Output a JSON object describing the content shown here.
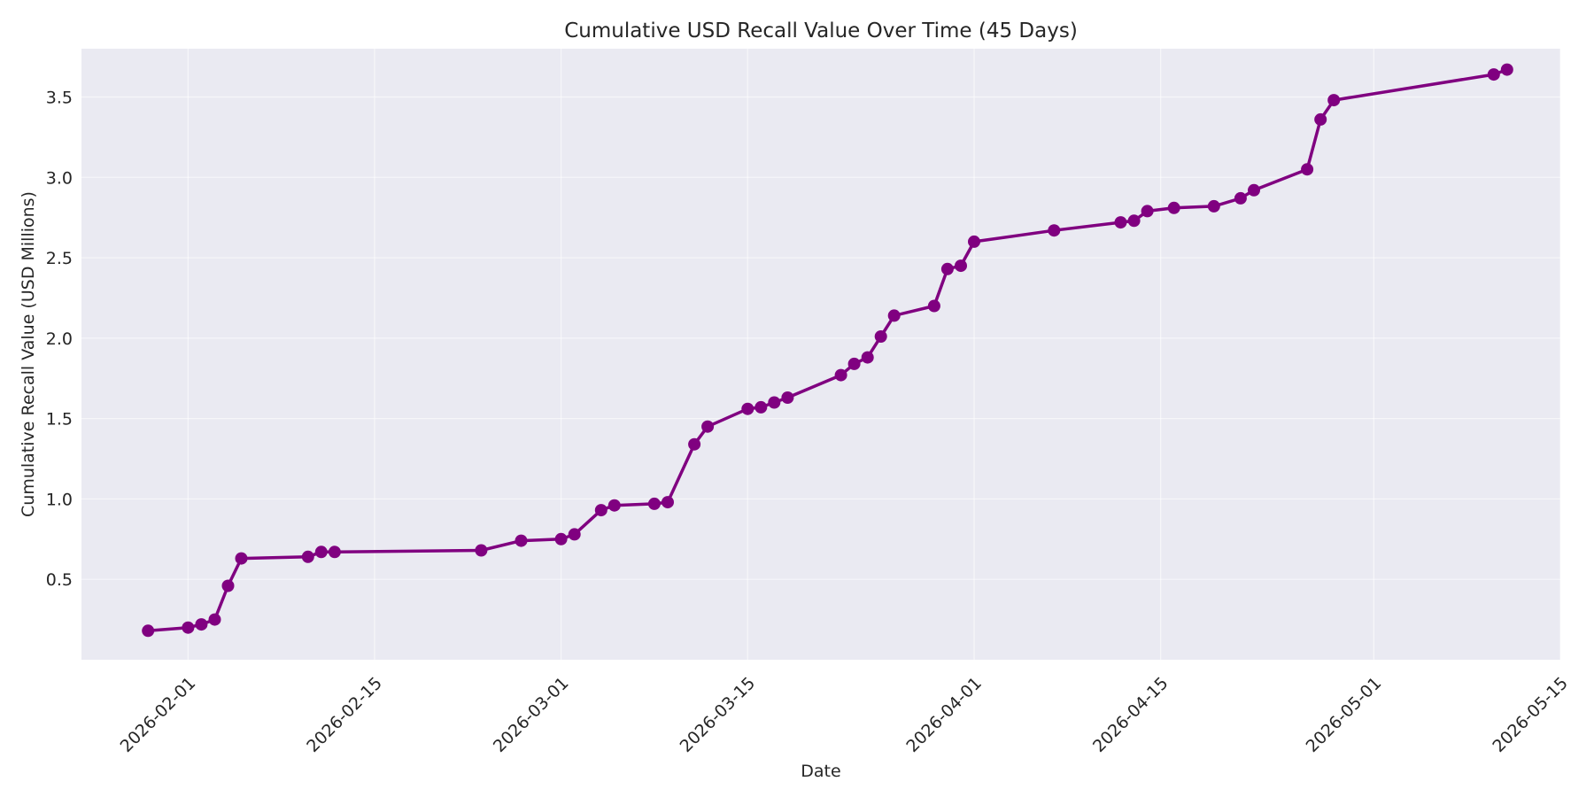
{
  "chart_data": {
    "type": "line",
    "title": "Cumulative USD Recall Value Over Time (45 Days)",
    "xlabel": "Date",
    "ylabel": "Cumulative Recall Value (USD Millions)",
    "xlim": [
      "2026-01-24",
      "2026-05-15"
    ],
    "ylim": [
      0.0,
      3.8
    ],
    "x_ticks": [
      "2026-02-01",
      "2026-02-15",
      "2026-03-01",
      "2026-03-15",
      "2026-04-01",
      "2026-04-15",
      "2026-05-01",
      "2026-05-15"
    ],
    "y_ticks": [
      "0.5",
      "1.0",
      "1.5",
      "2.0",
      "2.5",
      "3.0",
      "3.5"
    ],
    "grid": true,
    "colors": {
      "line": "#800080",
      "plot_background": "#eaeaf2",
      "grid": "#ffffff"
    },
    "series": [
      {
        "x": [
          "2026-01-29",
          "2026-02-01",
          "2026-02-02",
          "2026-02-03",
          "2026-02-04",
          "2026-02-05",
          "2026-02-10",
          "2026-02-11",
          "2026-02-12",
          "2026-02-23",
          "2026-02-26",
          "2026-03-01",
          "2026-03-02",
          "2026-03-04",
          "2026-03-05",
          "2026-03-08",
          "2026-03-09",
          "2026-03-11",
          "2026-03-12",
          "2026-03-15",
          "2026-03-16",
          "2026-03-17",
          "2026-03-18",
          "2026-03-22",
          "2026-03-23",
          "2026-03-24",
          "2026-03-25",
          "2026-03-26",
          "2026-03-29",
          "2026-03-30",
          "2026-03-31",
          "2026-04-01",
          "2026-04-07",
          "2026-04-12",
          "2026-04-13",
          "2026-04-14",
          "2026-04-16",
          "2026-04-19",
          "2026-04-21",
          "2026-04-22",
          "2026-04-26",
          "2026-04-27",
          "2026-04-28",
          "2026-05-10",
          "2026-05-11"
        ],
        "y": [
          0.18,
          0.2,
          0.22,
          0.25,
          0.46,
          0.63,
          0.64,
          0.67,
          0.67,
          0.68,
          0.74,
          0.75,
          0.78,
          0.93,
          0.96,
          0.97,
          0.98,
          1.34,
          1.45,
          1.56,
          1.57,
          1.6,
          1.63,
          1.77,
          1.84,
          1.88,
          2.01,
          2.14,
          2.2,
          2.43,
          2.45,
          2.6,
          2.67,
          2.72,
          2.73,
          2.79,
          2.81,
          2.82,
          2.87,
          2.92,
          3.05,
          3.36,
          3.48,
          3.64,
          3.67
        ]
      }
    ]
  }
}
